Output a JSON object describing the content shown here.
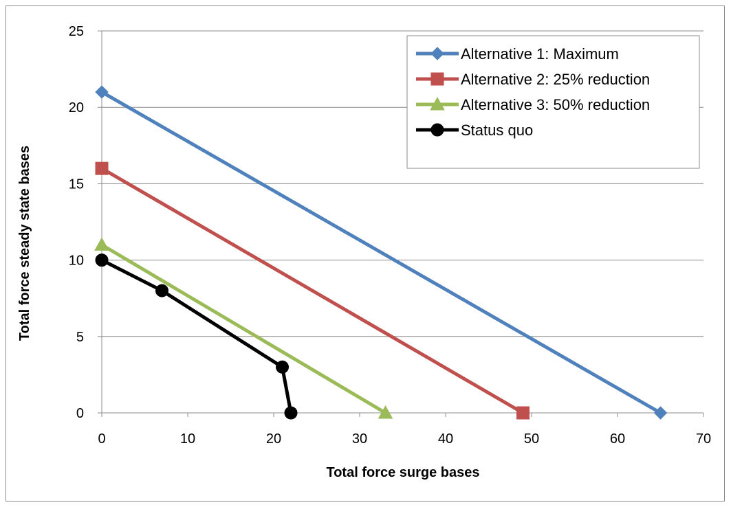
{
  "chart_data": {
    "type": "line",
    "title": "",
    "xlabel": "Total force surge bases",
    "ylabel": "Total force steady state bases",
    "xlim": [
      0,
      70
    ],
    "ylim": [
      0,
      25
    ],
    "xticks": [
      0,
      10,
      20,
      30,
      40,
      50,
      60,
      70
    ],
    "yticks": [
      0,
      5,
      10,
      15,
      20,
      25
    ],
    "grid": "horizontal",
    "legend": "top-right",
    "series": [
      {
        "name": "Alternative 1: Maximum",
        "color": "#4f81bd",
        "marker": "diamond",
        "points": [
          {
            "x": 0,
            "y": 21
          },
          {
            "x": 65,
            "y": 0
          }
        ]
      },
      {
        "name": "Alternative 2: 25% reduction",
        "color": "#c0504d",
        "marker": "square",
        "points": [
          {
            "x": 0,
            "y": 16
          },
          {
            "x": 49,
            "y": 0
          }
        ]
      },
      {
        "name": "Alternative 3: 50% reduction",
        "color": "#9bbb59",
        "marker": "triangle",
        "points": [
          {
            "x": 0,
            "y": 11
          },
          {
            "x": 33,
            "y": 0
          }
        ]
      },
      {
        "name": "Status quo",
        "color": "#000000",
        "marker": "circle",
        "points": [
          {
            "x": 0,
            "y": 10
          },
          {
            "x": 7,
            "y": 8
          },
          {
            "x": 21,
            "y": 3
          },
          {
            "x": 22,
            "y": 0
          }
        ]
      }
    ]
  }
}
